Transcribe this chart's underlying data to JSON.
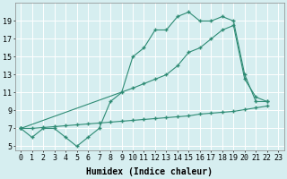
{
  "line1_x": [
    0,
    1,
    2,
    3,
    4,
    5,
    6,
    7,
    8,
    9,
    10,
    11,
    12,
    13,
    14,
    15,
    16,
    17,
    18,
    19,
    20,
    21,
    22
  ],
  "line1_y": [
    7,
    6,
    7,
    7,
    6,
    5,
    6,
    7,
    10,
    11,
    15,
    16,
    18,
    18,
    19.5,
    20,
    19,
    19,
    19.5,
    19,
    13,
    10,
    10
  ],
  "line2_x": [
    0,
    10,
    11,
    12,
    13,
    14,
    15,
    16,
    17,
    18,
    19,
    20,
    21,
    22
  ],
  "line2_y": [
    7,
    11.5,
    12,
    12.5,
    13,
    14,
    15.5,
    16,
    17,
    18,
    18.5,
    12.5,
    10.5,
    10
  ],
  "line3_x": [
    0,
    1,
    2,
    3,
    4,
    5,
    6,
    7,
    8,
    9,
    10,
    11,
    12,
    13,
    14,
    15,
    16,
    17,
    18,
    19,
    20,
    21,
    22
  ],
  "line3_y": [
    7,
    7,
    7.1,
    7.2,
    7.3,
    7.4,
    7.5,
    7.6,
    7.7,
    7.8,
    7.9,
    8.0,
    8.1,
    8.2,
    8.3,
    8.4,
    8.6,
    8.7,
    8.8,
    8.9,
    9.1,
    9.3,
    9.5
  ],
  "line_color": "#2e8b74",
  "bg_color": "#d6eef0",
  "grid_color": "#c0dde0",
  "xlabel": "Humidex (Indice chaleur)",
  "ylabel_ticks": [
    5,
    7,
    9,
    11,
    13,
    15,
    17,
    19
  ],
  "xtick_labels": [
    "0",
    "1",
    "2",
    "3",
    "4",
    "5",
    "6",
    "7",
    "8",
    "9",
    "10",
    "11",
    "12",
    "13",
    "14",
    "15",
    "16",
    "17",
    "18",
    "19",
    "20",
    "21",
    "22",
    "23"
  ],
  "xlim": [
    -0.5,
    23.5
  ],
  "ylim": [
    4.5,
    21
  ],
  "xlabel_fontsize": 7,
  "tick_fontsize": 6
}
